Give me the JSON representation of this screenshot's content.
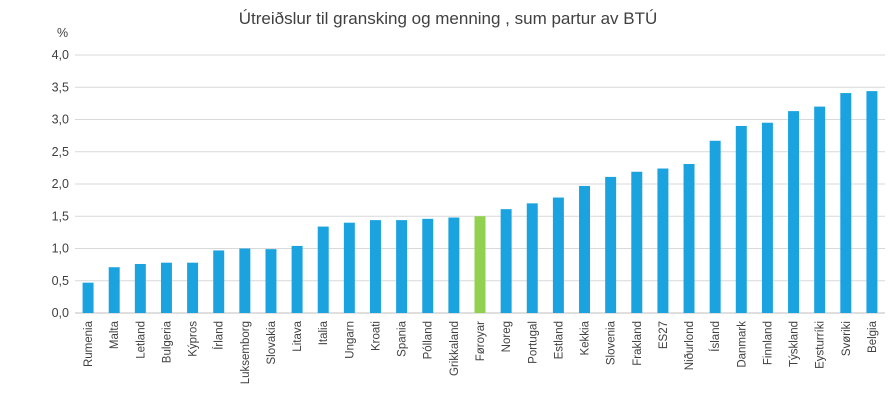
{
  "chart_data": {
    "type": "bar",
    "title": "Útreiðslur til gransking og menning , sum partur av BTÚ",
    "ylabel": "%",
    "xlabel": "",
    "ylim": [
      0,
      4.0
    ],
    "y_ticks": [
      "0,0",
      "0,5",
      "1,0",
      "1,5",
      "2,0",
      "2,5",
      "3,0",
      "3,5",
      "4,0"
    ],
    "grid": true,
    "legend": "none",
    "categories": [
      "Rumenia",
      "Malta",
      "Letland",
      "Bulgeria",
      "Kýpros",
      "Írland",
      "Luksemborg",
      "Slovakia",
      "Litava",
      "Italia",
      "Ungarn",
      "Kroati",
      "Spania",
      "Pólland",
      "Grikkaland",
      "Føroyar",
      "Noreg",
      "Portugal",
      "Estland",
      "Kekkia",
      "Slovenia",
      "Frakland",
      "ES27",
      "Niðurlond",
      "Ísland",
      "Danmark",
      "Finnland",
      "Týskland",
      "Eysturríki",
      "Svøriki",
      "Belgia"
    ],
    "values": [
      0.47,
      0.71,
      0.76,
      0.78,
      0.78,
      0.97,
      1.0,
      0.99,
      1.04,
      1.34,
      1.4,
      1.44,
      1.44,
      1.46,
      1.48,
      1.5,
      1.61,
      1.7,
      1.79,
      1.97,
      2.11,
      2.19,
      2.24,
      2.31,
      2.67,
      2.9,
      2.95,
      3.13,
      3.2,
      3.41,
      3.44
    ],
    "colors": {
      "default": "#1aa3df",
      "highlight": "#92d050",
      "highlight_category": "Føroyar",
      "grid": "#d9d9d9",
      "axis": "#bfbfbf"
    }
  }
}
